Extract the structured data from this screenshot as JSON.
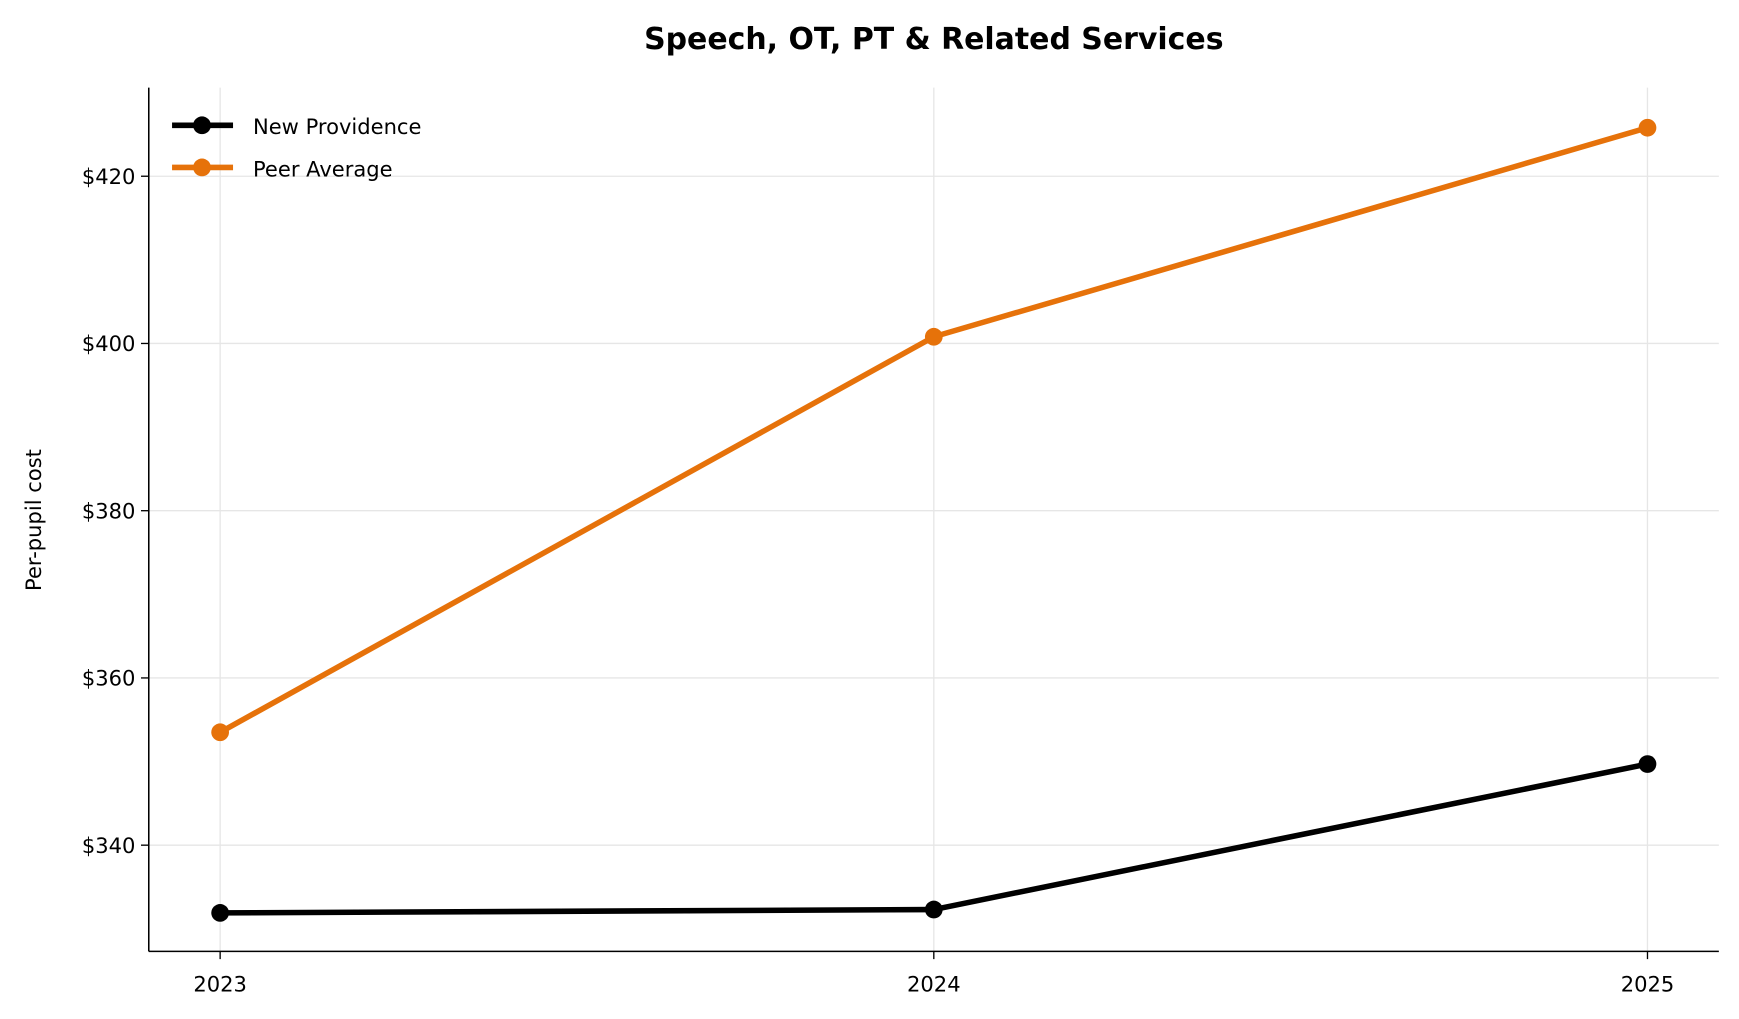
{
  "chart_data": {
    "type": "line",
    "title": "Speech, OT, PT & Related Services",
    "xlabel": "",
    "ylabel": "Per-pupil cost",
    "x": [
      2023,
      2024,
      2025
    ],
    "x_tick_labels": [
      "2023",
      "2024",
      "2025"
    ],
    "y_ticks": [
      340,
      360,
      380,
      400,
      420
    ],
    "y_tick_labels": [
      "$340",
      "$360",
      "$380",
      "$400",
      "$420"
    ],
    "xlim": [
      2022.9,
      2025.1
    ],
    "ylim": [
      327.3,
      430.6
    ],
    "grid": true,
    "legend_position": "top-left",
    "series": [
      {
        "name": "New Providence",
        "values": [
          331.9,
          332.3,
          349.7
        ],
        "color": "#000000"
      },
      {
        "name": "Peer Average",
        "values": [
          353.5,
          400.8,
          425.8
        ],
        "color": "#e6720a"
      }
    ]
  }
}
